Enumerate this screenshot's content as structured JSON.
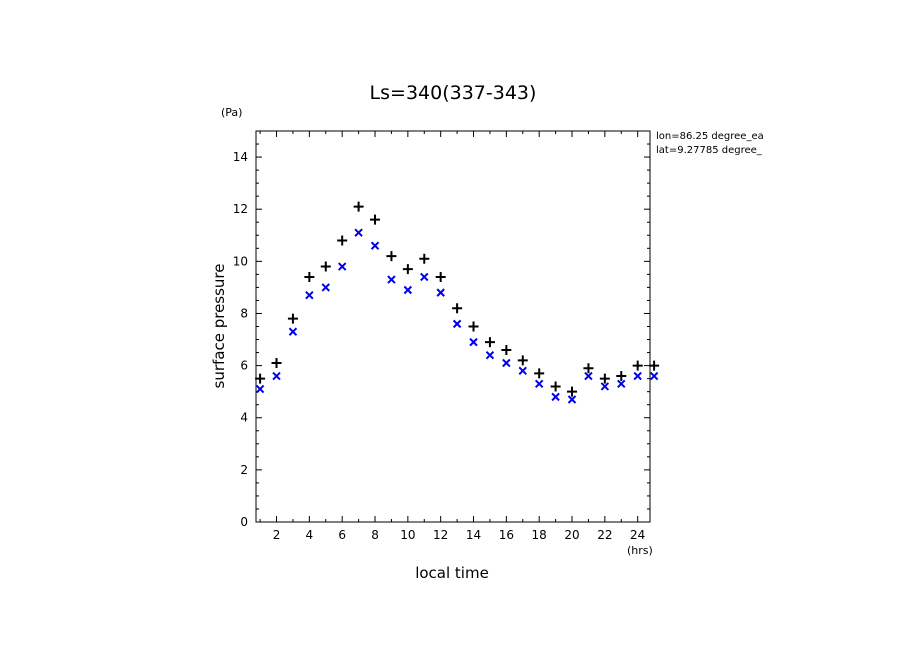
{
  "chart_data": {
    "type": "scatter",
    "title": "Ls=340(337-343)",
    "xlabel": "local time",
    "ylabel": "surface pressure",
    "x_unit": "(hrs)",
    "y_unit": "(Pa)",
    "xlim": [
      0.75,
      24.75
    ],
    "ylim": [
      0,
      15
    ],
    "x_ticks": [
      "2",
      "4",
      "6",
      "8",
      "10",
      "12",
      "14",
      "16",
      "18",
      "20",
      "22",
      "24"
    ],
    "y_ticks": [
      "0",
      "2",
      "4",
      "6",
      "8",
      "10",
      "12",
      "14"
    ],
    "annotations": [
      "lon=86.25 degree_ea",
      "lat=9.27785 degree_"
    ],
    "x": [
      1,
      2,
      3,
      4,
      5,
      6,
      7,
      8,
      9,
      10,
      11,
      12,
      13,
      14,
      15,
      16,
      17,
      18,
      19,
      20,
      21,
      22,
      23,
      24,
      25
    ],
    "series": [
      {
        "marker": "plus",
        "color": "#000000",
        "values": [
          5.5,
          6.1,
          7.8,
          9.4,
          9.8,
          10.8,
          12.1,
          11.6,
          10.2,
          9.7,
          10.1,
          9.4,
          8.2,
          7.5,
          6.9,
          6.6,
          6.2,
          5.7,
          5.2,
          5.0,
          5.9,
          5.5,
          5.6,
          6.0,
          6.0
        ]
      },
      {
        "marker": "x",
        "color": "#0000ee",
        "values": [
          5.1,
          5.6,
          7.3,
          8.7,
          9.0,
          9.8,
          11.1,
          10.6,
          9.3,
          8.9,
          9.4,
          8.8,
          7.6,
          6.9,
          6.4,
          6.1,
          5.8,
          5.3,
          4.8,
          4.7,
          5.6,
          5.2,
          5.3,
          5.6,
          5.6
        ]
      }
    ]
  }
}
